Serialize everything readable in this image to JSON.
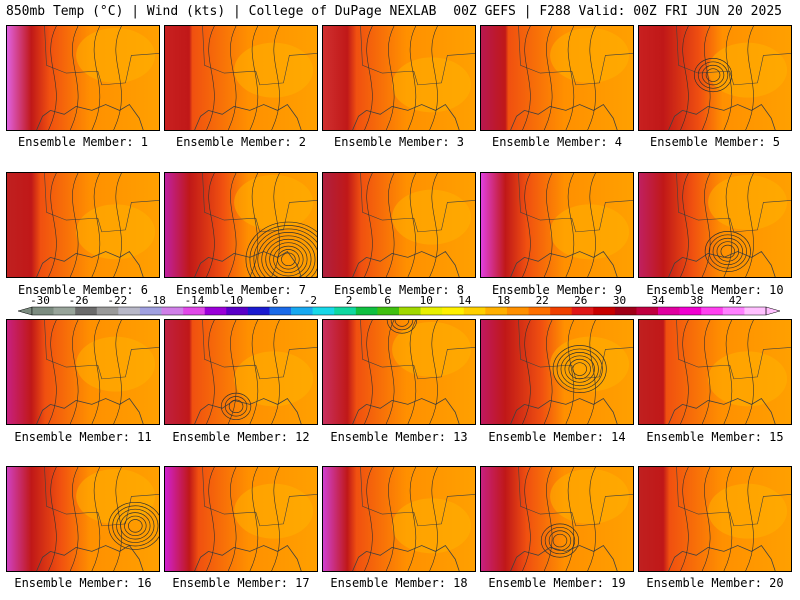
{
  "header": {
    "left": "850mb Temp (°C) | Wind (kts) | College of DuPage NEXLAB",
    "right": "00Z GEFS | F288 Valid: 00Z FRI JUN 20 2025"
  },
  "members": [
    {
      "label": "Ensemble Member: 1"
    },
    {
      "label": "Ensemble Member: 2"
    },
    {
      "label": "Ensemble Member: 3"
    },
    {
      "label": "Ensemble Member: 4"
    },
    {
      "label": "Ensemble Member: 5"
    },
    {
      "label": "Ensemble Member: 6"
    },
    {
      "label": "Ensemble Member: 7"
    },
    {
      "label": "Ensemble Member: 8"
    },
    {
      "label": "Ensemble Member: 9"
    },
    {
      "label": "Ensemble Member: 10"
    },
    {
      "label": "Ensemble Member: 11"
    },
    {
      "label": "Ensemble Member: 12"
    },
    {
      "label": "Ensemble Member: 13"
    },
    {
      "label": "Ensemble Member: 14"
    },
    {
      "label": "Ensemble Member: 15"
    },
    {
      "label": "Ensemble Member: 16"
    },
    {
      "label": "Ensemble Member: 17"
    },
    {
      "label": "Ensemble Member: 18"
    },
    {
      "label": "Ensemble Member: 19"
    },
    {
      "label": "Ensemble Member: 20"
    }
  ],
  "colorbar": {
    "labels": [
      "-30",
      "-26",
      "-22",
      "-18",
      "-14",
      "-10",
      "-6",
      "-2",
      "2",
      "6",
      "10",
      "14",
      "18",
      "22",
      "26",
      "30",
      "34",
      "38",
      "42"
    ],
    "colors": [
      "#7c8c80",
      "#98a49a",
      "#6b6b6b",
      "#9a9a9a",
      "#b8b8c8",
      "#a0a0e0",
      "#d080e8",
      "#e048e8",
      "#9a00d8",
      "#5a00c8",
      "#1a1ad0",
      "#1a6ae8",
      "#18a8f0",
      "#18d8e8",
      "#10d8a0",
      "#10c040",
      "#40c010",
      "#a0d800",
      "#e8f000",
      "#fff000",
      "#ffd000",
      "#ffb000",
      "#ff9000",
      "#ff7000",
      "#f04000",
      "#e01818",
      "#c80000",
      "#a00018",
      "#c00040",
      "#e000a0",
      "#f000d0",
      "#ff40f0",
      "#ff80ff",
      "#ffc0ff"
    ]
  }
}
